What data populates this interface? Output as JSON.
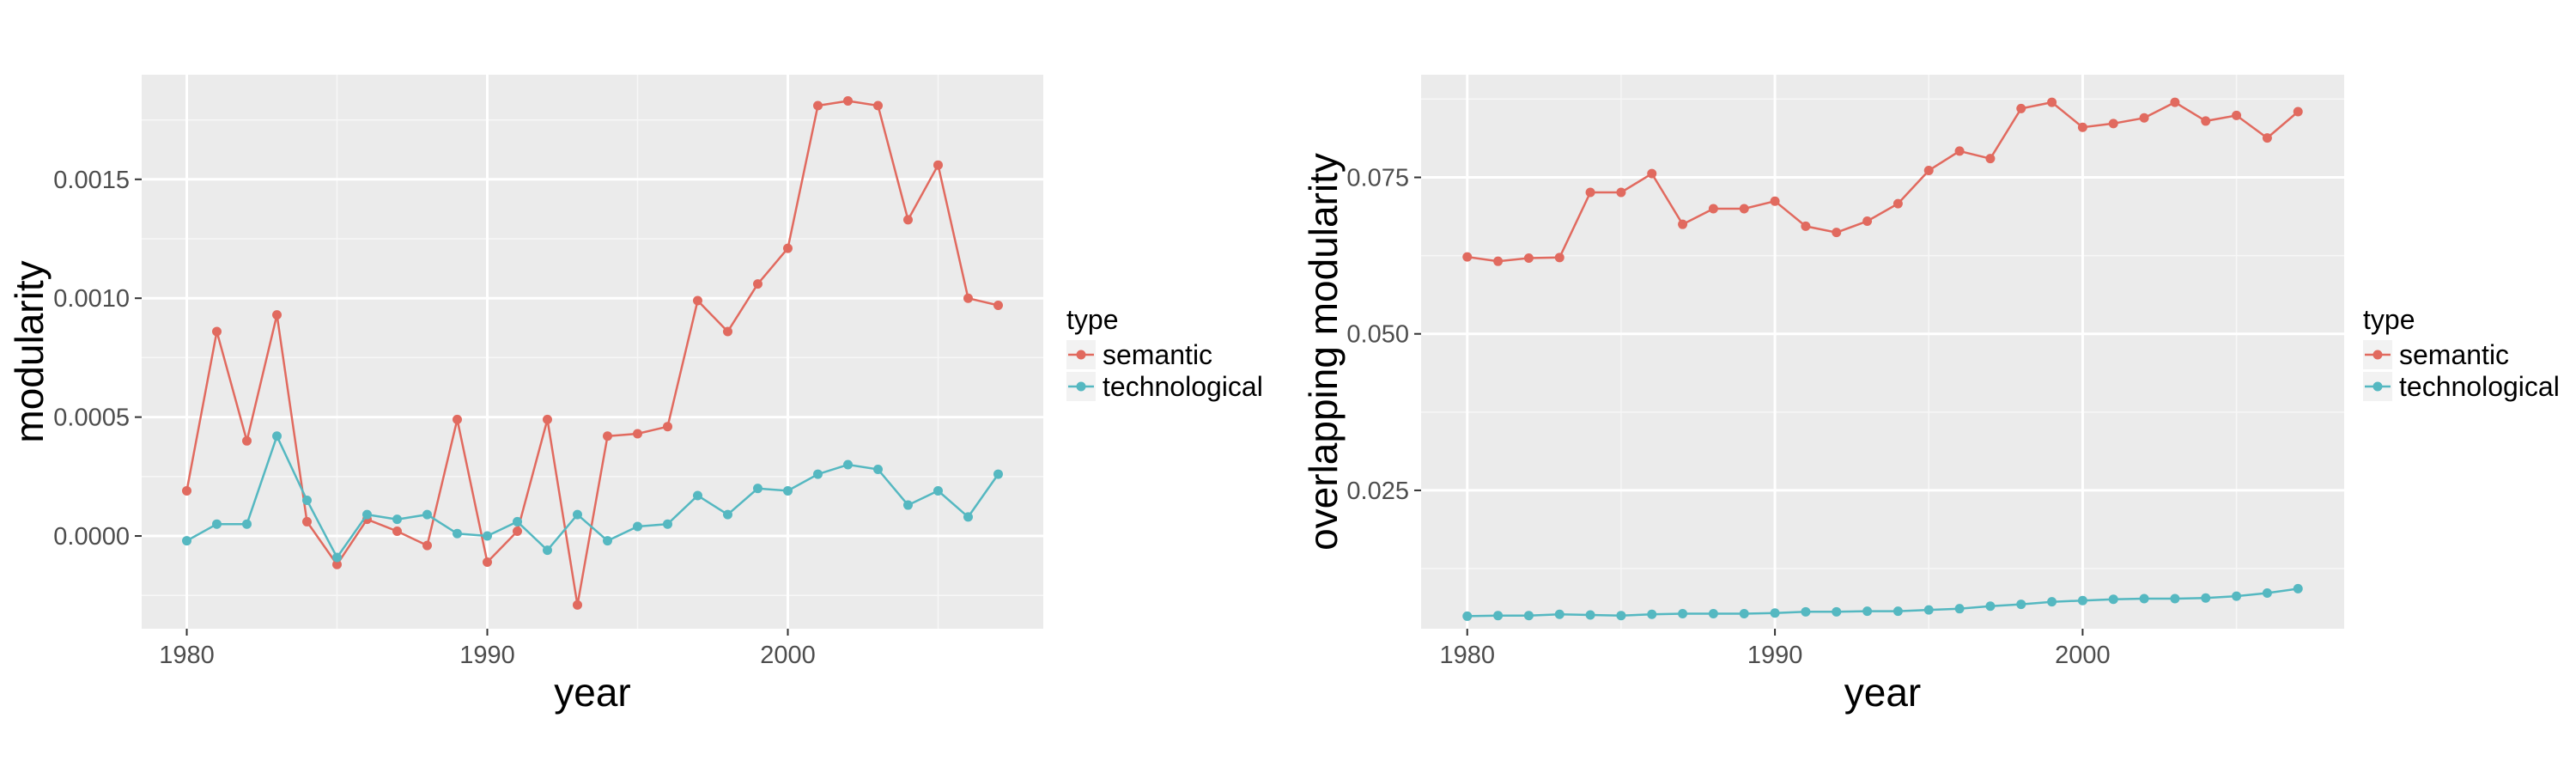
{
  "chart_data": [
    {
      "type": "line",
      "xlabel": "year",
      "ylabel": "modularity",
      "xlim": [
        1978.5,
        2008.5
      ],
      "ylim": [
        -0.00039,
        0.00194
      ],
      "x_ticks": [
        1980,
        1990,
        2000
      ],
      "x_tick_labels": [
        "1980",
        "1990",
        "2000"
      ],
      "y_ticks": [
        0.0,
        0.0005,
        0.001,
        0.0015
      ],
      "y_tick_labels": [
        "0.0000",
        "0.0005",
        "0.0010",
        "0.0015"
      ],
      "grid": true,
      "legend": {
        "title": "type",
        "position": "right"
      },
      "x": [
        1980,
        1981,
        1982,
        1983,
        1984,
        1985,
        1986,
        1987,
        1988,
        1989,
        1990,
        1991,
        1992,
        1993,
        1994,
        1995,
        1996,
        1997,
        1998,
        1999,
        2000,
        2001,
        2002,
        2003,
        2004,
        2005,
        2006,
        2007
      ],
      "series": [
        {
          "name": "semantic",
          "color": "#E16A5F",
          "values": [
            0.00019,
            0.00086,
            0.0004,
            0.00093,
            6e-05,
            -0.00012,
            7e-05,
            2e-05,
            -4e-05,
            0.00049,
            -0.00011,
            2e-05,
            0.00049,
            -0.00029,
            0.00042,
            0.00043,
            0.00046,
            0.00099,
            0.00086,
            0.00106,
            0.00121,
            0.00181,
            0.00183,
            0.00181,
            0.00133,
            0.00156,
            0.001,
            0.00097
          ]
        },
        {
          "name": "technological",
          "color": "#55B8C1",
          "values": [
            -2e-05,
            5e-05,
            5e-05,
            0.00042,
            0.00015,
            -9e-05,
            9e-05,
            7e-05,
            9e-05,
            1e-05,
            0.0,
            6e-05,
            -6e-05,
            9e-05,
            -2e-05,
            4e-05,
            5e-05,
            0.00017,
            9e-05,
            0.0002,
            0.00019,
            0.00026,
            0.0003,
            0.00028,
            0.00013,
            0.00019,
            8e-05,
            0.00026
          ]
        }
      ]
    },
    {
      "type": "line",
      "xlabel": "year",
      "ylabel": "overlapping modularity",
      "xlim": [
        1978.5,
        2008.5
      ],
      "ylim": [
        0.0029,
        0.0914
      ],
      "x_ticks": [
        1980,
        1990,
        2000
      ],
      "x_tick_labels": [
        "1980",
        "1990",
        "2000"
      ],
      "y_ticks": [
        0.025,
        0.05,
        0.075
      ],
      "y_tick_labels": [
        "0.025",
        "0.050",
        "0.075"
      ],
      "grid": true,
      "legend": {
        "title": "type",
        "position": "right"
      },
      "x": [
        1980,
        1981,
        1982,
        1983,
        1984,
        1985,
        1986,
        1987,
        1988,
        1989,
        1990,
        1991,
        1992,
        1993,
        1994,
        1995,
        1996,
        1997,
        1998,
        1999,
        2000,
        2001,
        2002,
        2003,
        2004,
        2005,
        2006,
        2007
      ],
      "series": [
        {
          "name": "semantic",
          "color": "#E16A5F",
          "values": [
            0.0623,
            0.0616,
            0.0621,
            0.0622,
            0.0726,
            0.0726,
            0.0756,
            0.0675,
            0.07,
            0.07,
            0.0712,
            0.0672,
            0.0662,
            0.068,
            0.0708,
            0.0761,
            0.0792,
            0.078,
            0.086,
            0.087,
            0.083,
            0.0836,
            0.0845,
            0.087,
            0.084,
            0.0849,
            0.0813,
            0.0855
          ]
        },
        {
          "name": "technological",
          "color": "#55B8C1",
          "values": [
            0.0049,
            0.005,
            0.005,
            0.0052,
            0.0051,
            0.005,
            0.0052,
            0.0053,
            0.0053,
            0.0053,
            0.0054,
            0.0056,
            0.0056,
            0.0057,
            0.0057,
            0.0059,
            0.0061,
            0.0065,
            0.0068,
            0.0072,
            0.0074,
            0.0076,
            0.0077,
            0.0077,
            0.0078,
            0.0081,
            0.0086,
            0.0093
          ]
        }
      ]
    }
  ]
}
